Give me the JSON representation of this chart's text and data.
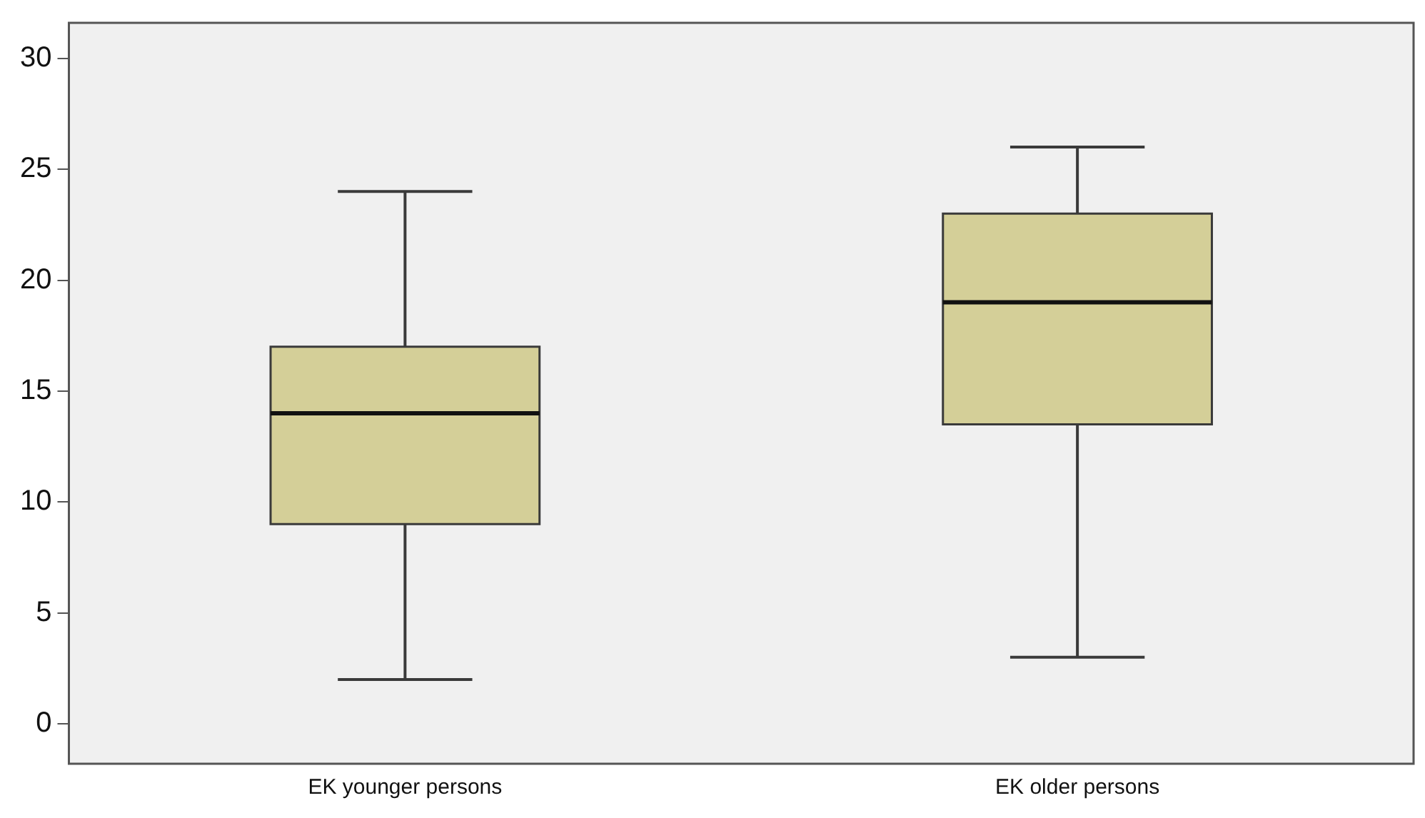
{
  "chart_data": {
    "type": "box",
    "categories": [
      "EK younger persons",
      "EK older persons"
    ],
    "boxes": [
      {
        "low": 2,
        "q1": 9,
        "median": 14,
        "q3": 17,
        "high": 24
      },
      {
        "low": 3,
        "q1": 13.5,
        "median": 19,
        "q3": 23,
        "high": 26
      }
    ],
    "color": "#d4cf98",
    "ylim": [
      -1.8,
      31.6
    ],
    "yticks": [
      0,
      5,
      10,
      15,
      20,
      25,
      30
    ],
    "legend": false
  }
}
